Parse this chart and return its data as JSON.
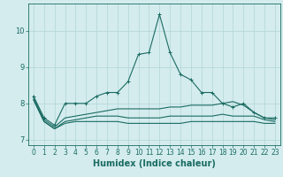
{
  "title": "",
  "xlabel": "Humidex (Indice chaleur)",
  "ylabel": "",
  "xlim": [
    -0.5,
    23.5
  ],
  "ylim": [
    6.85,
    10.75
  ],
  "yticks": [
    7,
    8,
    9,
    10
  ],
  "xtick_labels": [
    "0",
    "1",
    "2",
    "3",
    "4",
    "5",
    "6",
    "7",
    "8",
    "9",
    "10",
    "11",
    "12",
    "13",
    "14",
    "15",
    "16",
    "17",
    "18",
    "19",
    "20",
    "21",
    "22",
    "23"
  ],
  "bg_color": "#d4ecee",
  "grid_color": "#b2d4d6",
  "line_color": "#1a6b62",
  "lines": [
    [
      8.2,
      7.6,
      7.4,
      8.0,
      8.0,
      8.0,
      8.2,
      8.3,
      8.3,
      8.6,
      9.35,
      9.4,
      10.45,
      9.4,
      8.8,
      8.65,
      8.3,
      8.3,
      8.0,
      7.9,
      8.0,
      7.75,
      7.6,
      7.6
    ],
    [
      8.15,
      7.55,
      7.35,
      7.6,
      7.65,
      7.7,
      7.75,
      7.8,
      7.85,
      7.85,
      7.85,
      7.85,
      7.85,
      7.9,
      7.9,
      7.95,
      7.95,
      7.95,
      8.0,
      8.05,
      7.95,
      7.75,
      7.6,
      7.55
    ],
    [
      8.1,
      7.5,
      7.3,
      7.5,
      7.55,
      7.6,
      7.65,
      7.65,
      7.65,
      7.6,
      7.6,
      7.6,
      7.6,
      7.65,
      7.65,
      7.65,
      7.65,
      7.65,
      7.7,
      7.65,
      7.65,
      7.65,
      7.55,
      7.5
    ],
    [
      8.1,
      7.5,
      7.3,
      7.45,
      7.5,
      7.5,
      7.5,
      7.5,
      7.5,
      7.45,
      7.45,
      7.45,
      7.45,
      7.45,
      7.45,
      7.5,
      7.5,
      7.5,
      7.5,
      7.5,
      7.5,
      7.5,
      7.45,
      7.45
    ]
  ],
  "marker": "+",
  "marker_size": 3,
  "line_width": 0.8,
  "tick_fontsize": 5.5,
  "xlabel_fontsize": 7
}
